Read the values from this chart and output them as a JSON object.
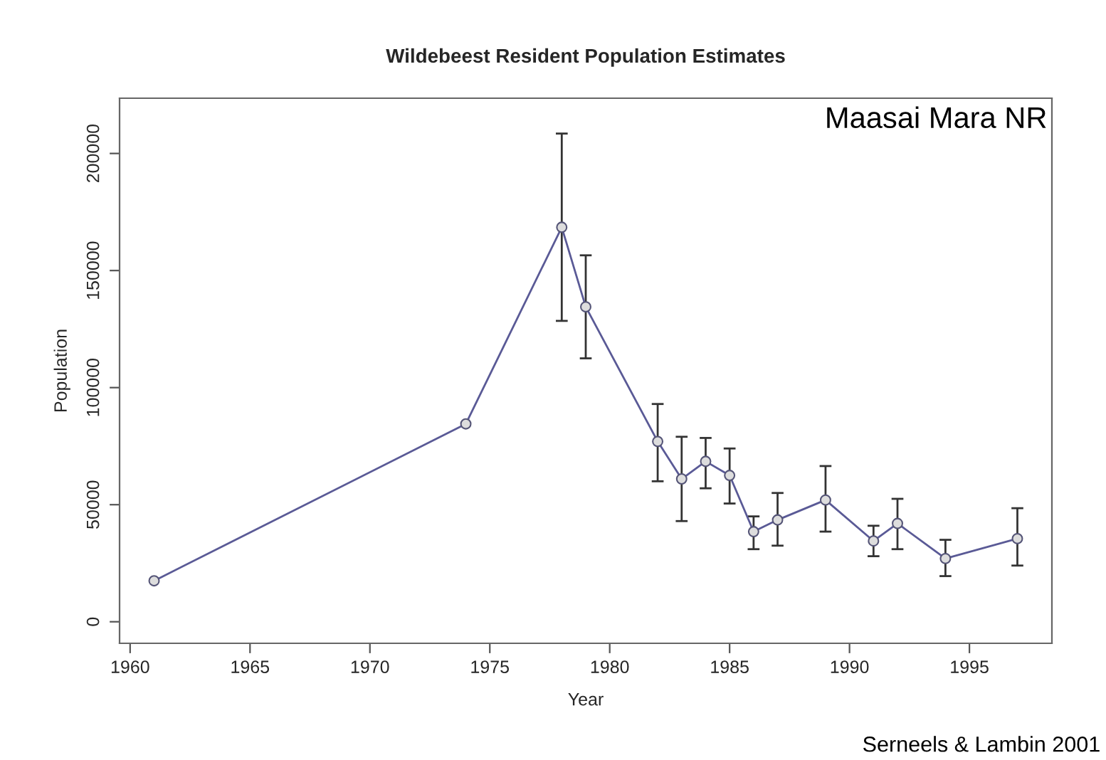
{
  "chart_data": {
    "type": "line",
    "title": "Wildebeest Resident Population Estimates",
    "xlabel": "Year",
    "ylabel": "Population",
    "x": [
      1961,
      1974,
      1978,
      1979,
      1982,
      1983,
      1984,
      1985,
      1986,
      1987,
      1989,
      1991,
      1992,
      1994,
      1997
    ],
    "series": [
      {
        "color": "#5a5a96",
        "values": [
          17500,
          84500,
          168500,
          134500,
          77000,
          61000,
          68500,
          62500,
          38500,
          43500,
          52000,
          34500,
          42000,
          27000,
          35500
        ],
        "errors": [
          null,
          null,
          [
            128500,
            208500
          ],
          [
            112500,
            156500
          ],
          [
            60000,
            93000
          ],
          [
            43000,
            79000
          ],
          [
            57000,
            78500
          ],
          [
            50500,
            74000
          ],
          [
            31000,
            45000
          ],
          [
            32500,
            55000
          ],
          [
            38500,
            66500
          ],
          [
            28000,
            41000
          ],
          [
            31000,
            52500
          ],
          [
            19500,
            35000
          ],
          [
            24000,
            48500
          ]
        ]
      }
    ],
    "marker": "circle",
    "line_style": "solid",
    "xlim": [
      1959.56,
      1998.44
    ],
    "ylim": [
      -9200,
      223600
    ],
    "xticks": [
      1960,
      1965,
      1970,
      1975,
      1980,
      1985,
      1990,
      1995
    ],
    "yticks": [
      0,
      50000,
      100000,
      150000,
      200000
    ],
    "grid": false,
    "legend": false,
    "annotations": [
      "Maasai Mara NR",
      "Serneels & Lambin 2001"
    ]
  }
}
